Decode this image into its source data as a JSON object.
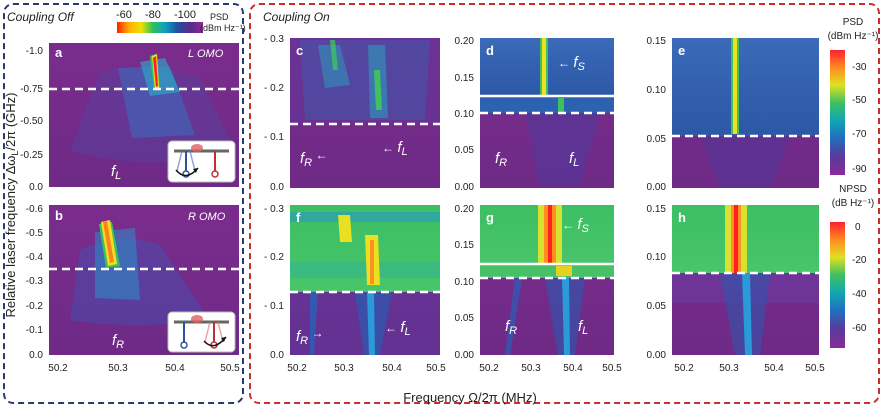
{
  "figure": {
    "group_off_title": "Coupling Off",
    "group_on_title": "Coupling On",
    "ylabel_main": "Relative laser frequency Δω",
    "ylabel_sub": "L",
    "ylabel_tail": "/2π (GHz)",
    "xlabel": "Frequency Ω/2π (MHz)",
    "top_colorbar": {
      "title": "PSD",
      "unit": "(dBm Hz⁻¹)",
      "ticks": [
        "-60",
        "-80",
        "-100"
      ],
      "colors": [
        "#ff2000",
        "#ffb000",
        "#f0e000",
        "#28c060",
        "#10a0c0",
        "#2050a0",
        "#5a2a8a",
        "#8a2a9a"
      ]
    },
    "right_colorbars": [
      {
        "title": "PSD",
        "unit": "(dBm Hz⁻¹)",
        "ticks": [
          "-30",
          "-50",
          "-70",
          "-90"
        ],
        "colors": [
          "#ff2030",
          "#ff8a20",
          "#e0e020",
          "#40c060",
          "#10a8b0",
          "#2070c0",
          "#5a3a9a",
          "#8a2a9a"
        ]
      },
      {
        "title": "NPSD",
        "unit": "(dB Hz⁻¹)",
        "ticks": [
          "0",
          "-20",
          "-40",
          "-60"
        ],
        "colors": [
          "#ff2030",
          "#ff8a20",
          "#e0e020",
          "#40c060",
          "#10a8b0",
          "#2070c0",
          "#5a3a9a",
          "#8a2a9a"
        ]
      }
    ],
    "x_ticks": [
      "50.2",
      "50.3",
      "50.4",
      "50.5"
    ],
    "panels": {
      "a": {
        "letter": "a",
        "tag": "L OMO",
        "y_ticks": [
          "-1.0",
          "-0.75",
          "-0.50",
          "-0.25",
          "0.0"
        ],
        "labels": [
          "f_L"
        ]
      },
      "b": {
        "letter": "b",
        "tag": "R OMO",
        "y_ticks": [
          "-0.6",
          "-0.5",
          "-0.4",
          "-0.3",
          "-0.2",
          "-0.1",
          "0.0"
        ],
        "labels": [
          "f_R"
        ]
      },
      "c": {
        "letter": "c",
        "y_ticks": [
          "- 0.3",
          "- 0.2",
          "- 0.1",
          "0.0"
        ],
        "labels": [
          "f_R",
          "f_L"
        ]
      },
      "d": {
        "letter": "d",
        "y_ticks": [
          "0.20",
          "0.15",
          "0.10",
          "0.05",
          "0.00"
        ],
        "labels": [
          "f_S",
          "f_R",
          "f_L"
        ]
      },
      "e": {
        "letter": "e",
        "y_ticks": [
          "0.15",
          "0.10",
          "0.05",
          "0.00"
        ],
        "labels": []
      },
      "f": {
        "letter": "f",
        "y_ticks": [
          "- 0.3",
          "- 0.2",
          "- 0.1",
          "0.0"
        ],
        "labels": [
          "f_R",
          "f_L"
        ]
      },
      "g": {
        "letter": "g",
        "y_ticks": [
          "0.20",
          "0.15",
          "0.10",
          "0.05",
          "0.00"
        ],
        "labels": [
          "f_S",
          "f_R",
          "f_L"
        ]
      },
      "h": {
        "letter": "h",
        "y_ticks": [
          "0.15",
          "0.10",
          "0.05",
          "0.00"
        ],
        "labels": []
      }
    },
    "colors": {
      "left_frame": "#2a3a6a",
      "right_frame": "#c83030",
      "background_purple": "#7a2d8a",
      "deep_blue": "#2a5aa8",
      "green": "#3cc060",
      "yellow": "#f0e020",
      "red": "#ff2020"
    }
  }
}
